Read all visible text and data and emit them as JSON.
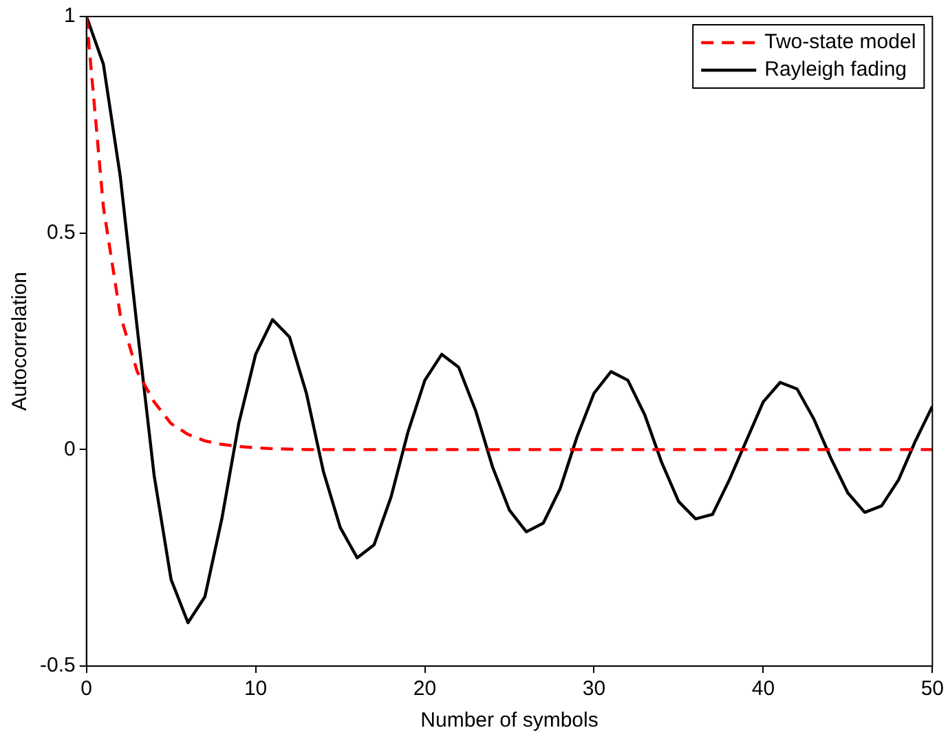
{
  "chart_data": {
    "type": "line",
    "xlabel": "Number of symbols",
    "ylabel": "Autocorrelation",
    "xlim": [
      0,
      50
    ],
    "xticks": [
      0,
      10,
      20,
      30,
      40,
      50
    ],
    "ylim": [
      -0.5,
      1
    ],
    "yticks": [
      -0.5,
      0,
      0.5,
      1
    ],
    "legend": "top right",
    "marker": "none",
    "x": [
      0,
      1,
      2,
      3,
      4,
      5,
      6,
      7,
      8,
      9,
      10,
      11,
      12,
      13,
      14,
      15,
      16,
      17,
      18,
      19,
      20,
      21,
      22,
      23,
      24,
      25,
      26,
      27,
      28,
      29,
      30,
      31,
      32,
      33,
      34,
      35,
      36,
      37,
      38,
      39,
      40,
      41,
      42,
      43,
      44,
      45,
      46,
      47,
      48,
      49,
      50
    ],
    "series": [
      {
        "name": "Two-state model",
        "color": "#ff0000",
        "line_style": "dashed",
        "values": [
          1,
          0.56,
          0.31,
          0.18,
          0.11,
          0.06,
          0.035,
          0.02,
          0.012,
          0.007,
          0.004,
          0.002,
          0.001,
          0,
          0,
          0,
          0,
          0,
          0,
          0,
          0,
          0,
          0,
          0,
          0,
          0,
          0,
          0,
          0,
          0,
          0,
          0,
          0,
          0,
          0,
          0,
          0,
          0,
          0,
          0,
          0,
          0,
          0,
          0,
          0,
          0,
          0,
          0,
          0,
          0,
          0
        ]
      },
      {
        "name": "Rayleigh fading",
        "color": "#000000",
        "line_style": "solid",
        "values": [
          1,
          0.89,
          0.63,
          0.28,
          -0.06,
          -0.3,
          -0.4,
          -0.34,
          -0.16,
          0.06,
          0.22,
          0.3,
          0.26,
          0.13,
          -0.05,
          -0.18,
          -0.25,
          -0.22,
          -0.11,
          0.04,
          0.16,
          0.22,
          0.19,
          0.09,
          -0.04,
          -0.14,
          -0.19,
          -0.17,
          -0.09,
          0.03,
          0.13,
          0.18,
          0.16,
          0.08,
          -0.03,
          -0.12,
          -0.16,
          -0.15,
          -0.07,
          0.02,
          0.11,
          0.155,
          0.14,
          0.07,
          -0.02,
          -0.1,
          -0.145,
          -0.13,
          -0.07,
          0.02,
          0.1
        ]
      }
    ]
  }
}
